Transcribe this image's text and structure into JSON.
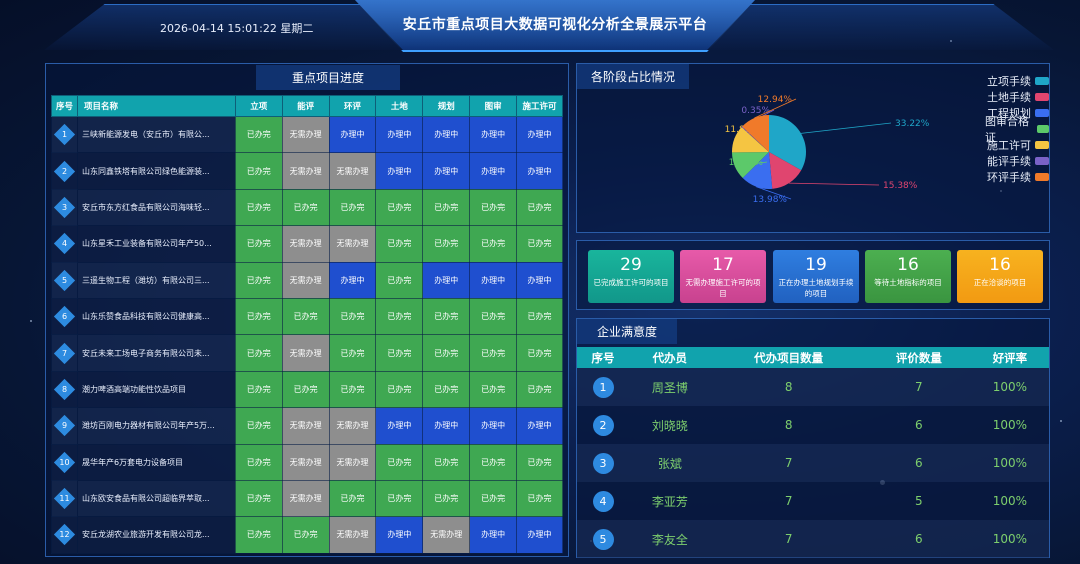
{
  "header": {
    "datetime": "2026-04-14 15:01:22 星期二",
    "title": "安丘市重点项目大数据可视化分析全景展示平台"
  },
  "progress": {
    "title": "重点项目进度",
    "columns": [
      "序号",
      "项目名称",
      "立项",
      "能评",
      "环评",
      "土地",
      "规划",
      "图审",
      "施工许可"
    ],
    "rows": [
      {
        "no": "1",
        "name": "三峡新能源发电（安丘市）有限公...",
        "cells": [
          "已办完",
          "无需办理",
          "办理中",
          "办理中",
          "办理中",
          "办理中",
          "办理中"
        ]
      },
      {
        "no": "2",
        "name": "山东同鑫铁塔有限公司绿色能源装...",
        "cells": [
          "已办完",
          "无需办理",
          "无需办理",
          "办理中",
          "办理中",
          "办理中",
          "办理中"
        ]
      },
      {
        "no": "3",
        "name": "安丘市东方红食品有限公司海味轻...",
        "cells": [
          "已办完",
          "已办完",
          "已办完",
          "已办完",
          "已办完",
          "已办完",
          "已办完"
        ]
      },
      {
        "no": "4",
        "name": "山东星禾工业装备有限公司年产50...",
        "cells": [
          "已办完",
          "无需办理",
          "无需办理",
          "已办完",
          "已办完",
          "已办完",
          "已办完"
        ]
      },
      {
        "no": "5",
        "name": "三遥生物工程（潍坊）有限公司三...",
        "cells": [
          "已办完",
          "无需办理",
          "办理中",
          "已办完",
          "办理中",
          "办理中",
          "办理中"
        ]
      },
      {
        "no": "6",
        "name": "山东乐赞食品科技有限公司健康高...",
        "cells": [
          "已办完",
          "已办完",
          "已办完",
          "已办完",
          "已办完",
          "已办完",
          "已办完"
        ]
      },
      {
        "no": "7",
        "name": "安丘未来工场电子商务有限公司未...",
        "cells": [
          "已办完",
          "无需办理",
          "已办完",
          "已办完",
          "已办完",
          "已办完",
          "已办完"
        ]
      },
      {
        "no": "8",
        "name": "潮力啤酒高端功能性饮品项目",
        "cells": [
          "已办完",
          "已办完",
          "已办完",
          "已办完",
          "已办完",
          "已办完",
          "已办完"
        ]
      },
      {
        "no": "9",
        "name": "潍坊百刚电力器材有限公司年产5万...",
        "cells": [
          "已办完",
          "无需办理",
          "无需办理",
          "办理中",
          "办理中",
          "办理中",
          "办理中"
        ]
      },
      {
        "no": "10",
        "name": "晟华年产6万套电力设备项目",
        "cells": [
          "已办完",
          "无需办理",
          "无需办理",
          "已办完",
          "已办完",
          "已办完",
          "已办完"
        ]
      },
      {
        "no": "11",
        "name": "山东欧安食品有限公司超临界萃取...",
        "cells": [
          "已办完",
          "无需办理",
          "已办完",
          "已办完",
          "已办完",
          "已办完",
          "已办完"
        ]
      },
      {
        "no": "12",
        "name": "安丘龙湖农业旅游开发有限公司龙...",
        "cells": [
          "已办完",
          "已办完",
          "无需办理",
          "办理中",
          "无需办理",
          "办理中",
          "办理中"
        ]
      }
    ]
  },
  "stages": {
    "title": "各阶段占比情况",
    "chart_data": {
      "type": "pie",
      "slices": [
        {
          "name": "立项手续",
          "value": 33.22,
          "label": "33.22%",
          "color": "#1fa6c8"
        },
        {
          "name": "土地手续",
          "value": 15.38,
          "label": "15.38%",
          "color": "#e0456f"
        },
        {
          "name": "工程规划",
          "value": 13.98,
          "label": "13.98%",
          "color": "#3a6ef0"
        },
        {
          "name": "图审合格证",
          "value": 12.24,
          "label": "12.24%",
          "color": "#5cc96a"
        },
        {
          "name": "施工许可",
          "value": 11.89,
          "label": "11.89%",
          "color": "#f5c542"
        },
        {
          "name": "能评手续",
          "value": 0.35,
          "label": "0.35%",
          "color": "#7a62c8"
        },
        {
          "name": "环评手续",
          "value": 12.94,
          "label": "12.94%",
          "color": "#f07a2a"
        }
      ]
    }
  },
  "kpis": [
    {
      "value": "29",
      "label": "已完成施工许可的项目",
      "color_from": "#19b59c",
      "color_to": "#11978a"
    },
    {
      "value": "17",
      "label": "无需办理施工许可的项目",
      "color_from": "#e75aa9",
      "color_to": "#c8428f"
    },
    {
      "value": "19",
      "label": "正在办理土地规划手续的项目",
      "color_from": "#2f7ee0",
      "color_to": "#2161c0"
    },
    {
      "value": "16",
      "label": "等待土地指标的项目",
      "color_from": "#4caf50",
      "color_to": "#3a9540"
    },
    {
      "value": "16",
      "label": "正在洽谈的项目",
      "color_from": "#f7b21f",
      "color_to": "#f29a12"
    }
  ],
  "satisfaction": {
    "title": "企业满意度",
    "columns": [
      "序号",
      "代办员",
      "代办项目数量",
      "评价数量",
      "好评率"
    ],
    "rows": [
      {
        "no": "1",
        "agent": "周圣博",
        "projects": "8",
        "reviews": "7",
        "rate": "100%"
      },
      {
        "no": "2",
        "agent": "刘晓晓",
        "projects": "8",
        "reviews": "6",
        "rate": "100%"
      },
      {
        "no": "3",
        "agent": "张斌",
        "projects": "7",
        "reviews": "6",
        "rate": "100%"
      },
      {
        "no": "4",
        "agent": "李亚芳",
        "projects": "7",
        "reviews": "5",
        "rate": "100%"
      },
      {
        "no": "5",
        "agent": "李友全",
        "projects": "7",
        "reviews": "6",
        "rate": "100%"
      }
    ]
  }
}
